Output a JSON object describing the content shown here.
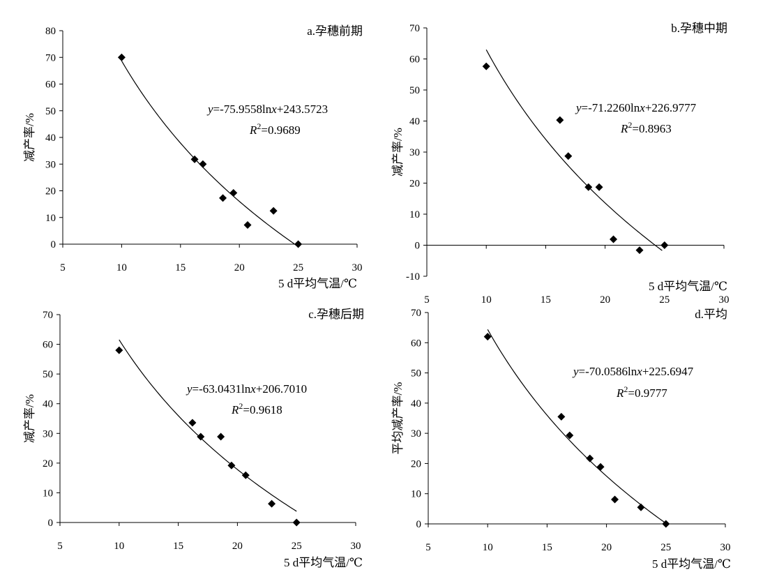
{
  "chart_data": [
    {
      "type": "scatter",
      "title": "a.孕穗前期",
      "xlabel": "5 d平均气温/℃",
      "ylabel": "减产率/%",
      "xlim": [
        5,
        30
      ],
      "ylim": [
        0,
        80
      ],
      "xticks": [
        5,
        10,
        15,
        20,
        25,
        30
      ],
      "yticks": [
        0,
        10,
        20,
        30,
        40,
        50,
        60,
        70,
        80
      ],
      "points": [
        {
          "x": 10.0,
          "y": 70.0
        },
        {
          "x": 16.2,
          "y": 31.8
        },
        {
          "x": 16.9,
          "y": 30.0
        },
        {
          "x": 18.6,
          "y": 17.3
        },
        {
          "x": 19.5,
          "y": 19.2
        },
        {
          "x": 20.7,
          "y": 7.2
        },
        {
          "x": 22.9,
          "y": 12.5
        },
        {
          "x": 25.0,
          "y": 0.0
        }
      ],
      "fit": {
        "a": -75.9558,
        "b": 243.5723,
        "x_range": [
          10,
          25
        ],
        "equation": {
          "y": "y",
          "rest": "=-75.9558ln",
          "x": "x",
          "tail": "+243.5723"
        },
        "r2": {
          "r": "R",
          "sup": "2",
          "value": "=0.9689"
        }
      }
    },
    {
      "type": "scatter",
      "title": "b.孕穗中期",
      "xlabel": "5 d平均气温/℃",
      "ylabel": "减产率/%",
      "xlim": [
        5,
        30
      ],
      "ylim": [
        -10,
        70
      ],
      "xticks": [
        5,
        10,
        15,
        20,
        25,
        30
      ],
      "yticks": [
        -10,
        0,
        10,
        20,
        30,
        40,
        50,
        60,
        70
      ],
      "points": [
        {
          "x": 10.0,
          "y": 57.6
        },
        {
          "x": 16.2,
          "y": 40.3
        },
        {
          "x": 16.9,
          "y": 28.7
        },
        {
          "x": 18.6,
          "y": 18.7
        },
        {
          "x": 19.5,
          "y": 18.7
        },
        {
          "x": 20.7,
          "y": 1.9
        },
        {
          "x": 22.9,
          "y": -1.6
        },
        {
          "x": 25.0,
          "y": 0.0
        }
      ],
      "fit": {
        "a": -71.226,
        "b": 226.9777,
        "x_range": [
          10,
          24.8
        ],
        "equation": {
          "y": "y",
          "rest": "=-71.2260ln",
          "x": "x",
          "tail": "+226.9777"
        },
        "r2": {
          "r": "R",
          "sup": "2",
          "value": "=0.8963"
        }
      }
    },
    {
      "type": "scatter",
      "title": "c.孕穗后期",
      "xlabel": "5 d平均气温/℃",
      "ylabel": "减产率/%",
      "xlim": [
        5,
        30
      ],
      "ylim": [
        0,
        70
      ],
      "xticks": [
        5,
        10,
        15,
        20,
        25,
        30
      ],
      "yticks": [
        0,
        10,
        20,
        30,
        40,
        50,
        60,
        70
      ],
      "points": [
        {
          "x": 10.0,
          "y": 58.0
        },
        {
          "x": 16.2,
          "y": 33.6
        },
        {
          "x": 16.9,
          "y": 28.9
        },
        {
          "x": 18.6,
          "y": 28.9
        },
        {
          "x": 19.5,
          "y": 19.2
        },
        {
          "x": 20.7,
          "y": 15.9
        },
        {
          "x": 22.9,
          "y": 6.3
        },
        {
          "x": 25.0,
          "y": 0.0
        }
      ],
      "fit": {
        "a": -63.0431,
        "b": 206.701,
        "x_range": [
          10,
          25
        ],
        "equation": {
          "y": "y",
          "rest": "=-63.0431ln",
          "x": "x",
          "tail": "+206.7010"
        },
        "r2": {
          "r": "R",
          "sup": "2",
          "value": "=0.9618"
        }
      }
    },
    {
      "type": "scatter",
      "title": "d.平均",
      "xlabel": "5 d平均气温/℃",
      "ylabel": "平均减产率/%",
      "xlim": [
        5,
        30
      ],
      "ylim": [
        0,
        70
      ],
      "xticks": [
        5,
        10,
        15,
        20,
        25,
        30
      ],
      "yticks": [
        0,
        10,
        20,
        30,
        40,
        50,
        60,
        70
      ],
      "points": [
        {
          "x": 10.0,
          "y": 62.0
        },
        {
          "x": 16.2,
          "y": 35.5
        },
        {
          "x": 16.9,
          "y": 29.3
        },
        {
          "x": 18.6,
          "y": 21.7
        },
        {
          "x": 19.5,
          "y": 18.9
        },
        {
          "x": 20.7,
          "y": 8.1
        },
        {
          "x": 22.9,
          "y": 5.5
        },
        {
          "x": 25.0,
          "y": 0.0
        }
      ],
      "fit": {
        "a": -70.0586,
        "b": 225.6947,
        "x_range": [
          10,
          25
        ],
        "equation": {
          "y": "y",
          "rest": "=-70.0586ln",
          "x": "x",
          "tail": "+225.6947"
        },
        "r2": {
          "r": "R",
          "sup": "2",
          "value": "=0.9777"
        }
      }
    }
  ]
}
